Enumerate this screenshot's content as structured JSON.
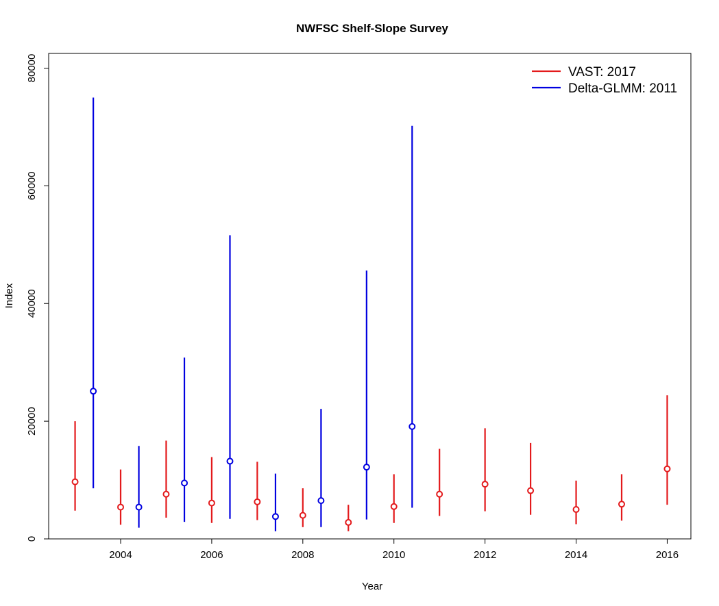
{
  "chart_data": {
    "type": "scatter",
    "title": "NWFSC Shelf-Slope Survey",
    "xlabel": "Year",
    "ylabel": "Index",
    "xlim": [
      2002.42,
      2016.52
    ],
    "ylim": [
      0,
      82500
    ],
    "x_ticks": [
      2004,
      2006,
      2008,
      2010,
      2012,
      2014,
      2016
    ],
    "y_ticks": [
      0,
      20000,
      40000,
      60000,
      80000
    ],
    "grid": false,
    "legend_position": "top-right",
    "series": [
      {
        "name": "VAST: 2017",
        "color": "#e31a1c",
        "points": [
          {
            "x": 2003,
            "y": 9700,
            "lo": 4800,
            "hi": 20000
          },
          {
            "x": 2004,
            "y": 5400,
            "lo": 2400,
            "hi": 11800
          },
          {
            "x": 2005,
            "y": 7600,
            "lo": 3600,
            "hi": 16700
          },
          {
            "x": 2006,
            "y": 6100,
            "lo": 2700,
            "hi": 13900
          },
          {
            "x": 2007,
            "y": 6300,
            "lo": 3200,
            "hi": 13100
          },
          {
            "x": 2008,
            "y": 4000,
            "lo": 2000,
            "hi": 8600
          },
          {
            "x": 2009,
            "y": 2800,
            "lo": 1300,
            "hi": 5800
          },
          {
            "x": 2010,
            "y": 5500,
            "lo": 2700,
            "hi": 11000
          },
          {
            "x": 2011,
            "y": 7600,
            "lo": 3900,
            "hi": 15300
          },
          {
            "x": 2012,
            "y": 9300,
            "lo": 4700,
            "hi": 18800
          },
          {
            "x": 2013,
            "y": 8200,
            "lo": 4100,
            "hi": 16300
          },
          {
            "x": 2014,
            "y": 5000,
            "lo": 2500,
            "hi": 9900
          },
          {
            "x": 2015,
            "y": 5900,
            "lo": 3100,
            "hi": 11000
          },
          {
            "x": 2016,
            "y": 11900,
            "lo": 5800,
            "hi": 24400
          }
        ]
      },
      {
        "name": "Delta-GLMM: 2011",
        "color": "#0000e0",
        "points": [
          {
            "x": 2003.4,
            "y": 25100,
            "lo": 8600,
            "hi": 75000
          },
          {
            "x": 2004.4,
            "y": 5400,
            "lo": 1900,
            "hi": 15800
          },
          {
            "x": 2005.4,
            "y": 9500,
            "lo": 2900,
            "hi": 30800
          },
          {
            "x": 2006.4,
            "y": 13200,
            "lo": 3400,
            "hi": 51600
          },
          {
            "x": 2007.4,
            "y": 3800,
            "lo": 1300,
            "hi": 11100
          },
          {
            "x": 2008.4,
            "y": 6500,
            "lo": 2000,
            "hi": 22100
          },
          {
            "x": 2009.4,
            "y": 12200,
            "lo": 3300,
            "hi": 45600
          },
          {
            "x": 2010.4,
            "y": 19100,
            "lo": 5300,
            "hi": 70200
          }
        ]
      }
    ]
  }
}
